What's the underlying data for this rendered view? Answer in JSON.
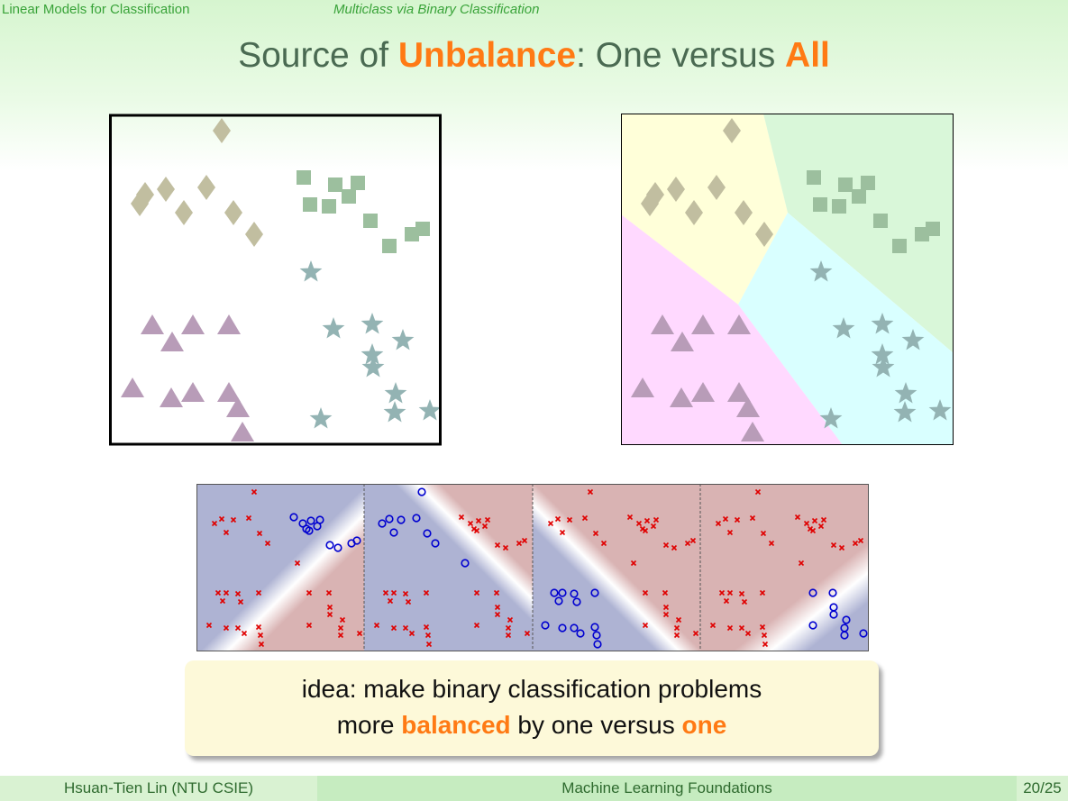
{
  "header": {
    "section": "Linear Models for Classification",
    "subsection": "Multiclass via Binary Classification"
  },
  "title": {
    "part1": "Source of ",
    "highlight1": "Unbalance",
    "part2": ": One versus ",
    "highlight2": "All"
  },
  "colors": {
    "accent": "#ff7a14",
    "diamond": "#c1bea0",
    "square": "#9cbf9e",
    "star": "#93b3b3",
    "triangle": "#b89cb8",
    "region_diamond": "#ffffd9",
    "region_square": "#d9f7d9",
    "region_star": "#d9ffff",
    "region_triangle": "#ffd9ff",
    "cross": "#e00000",
    "circle": "#0000d0"
  },
  "callout": {
    "line1": "idea: make binary classification problems",
    "line2_part1": "more ",
    "line2_highlight1": "balanced",
    "line2_part2": " by one versus ",
    "line2_highlight2": "one"
  },
  "footer": {
    "author": "Hsuan-Tien Lin  (NTU CSIE)",
    "course": "Machine Learning Foundations",
    "page": "20/25"
  }
}
